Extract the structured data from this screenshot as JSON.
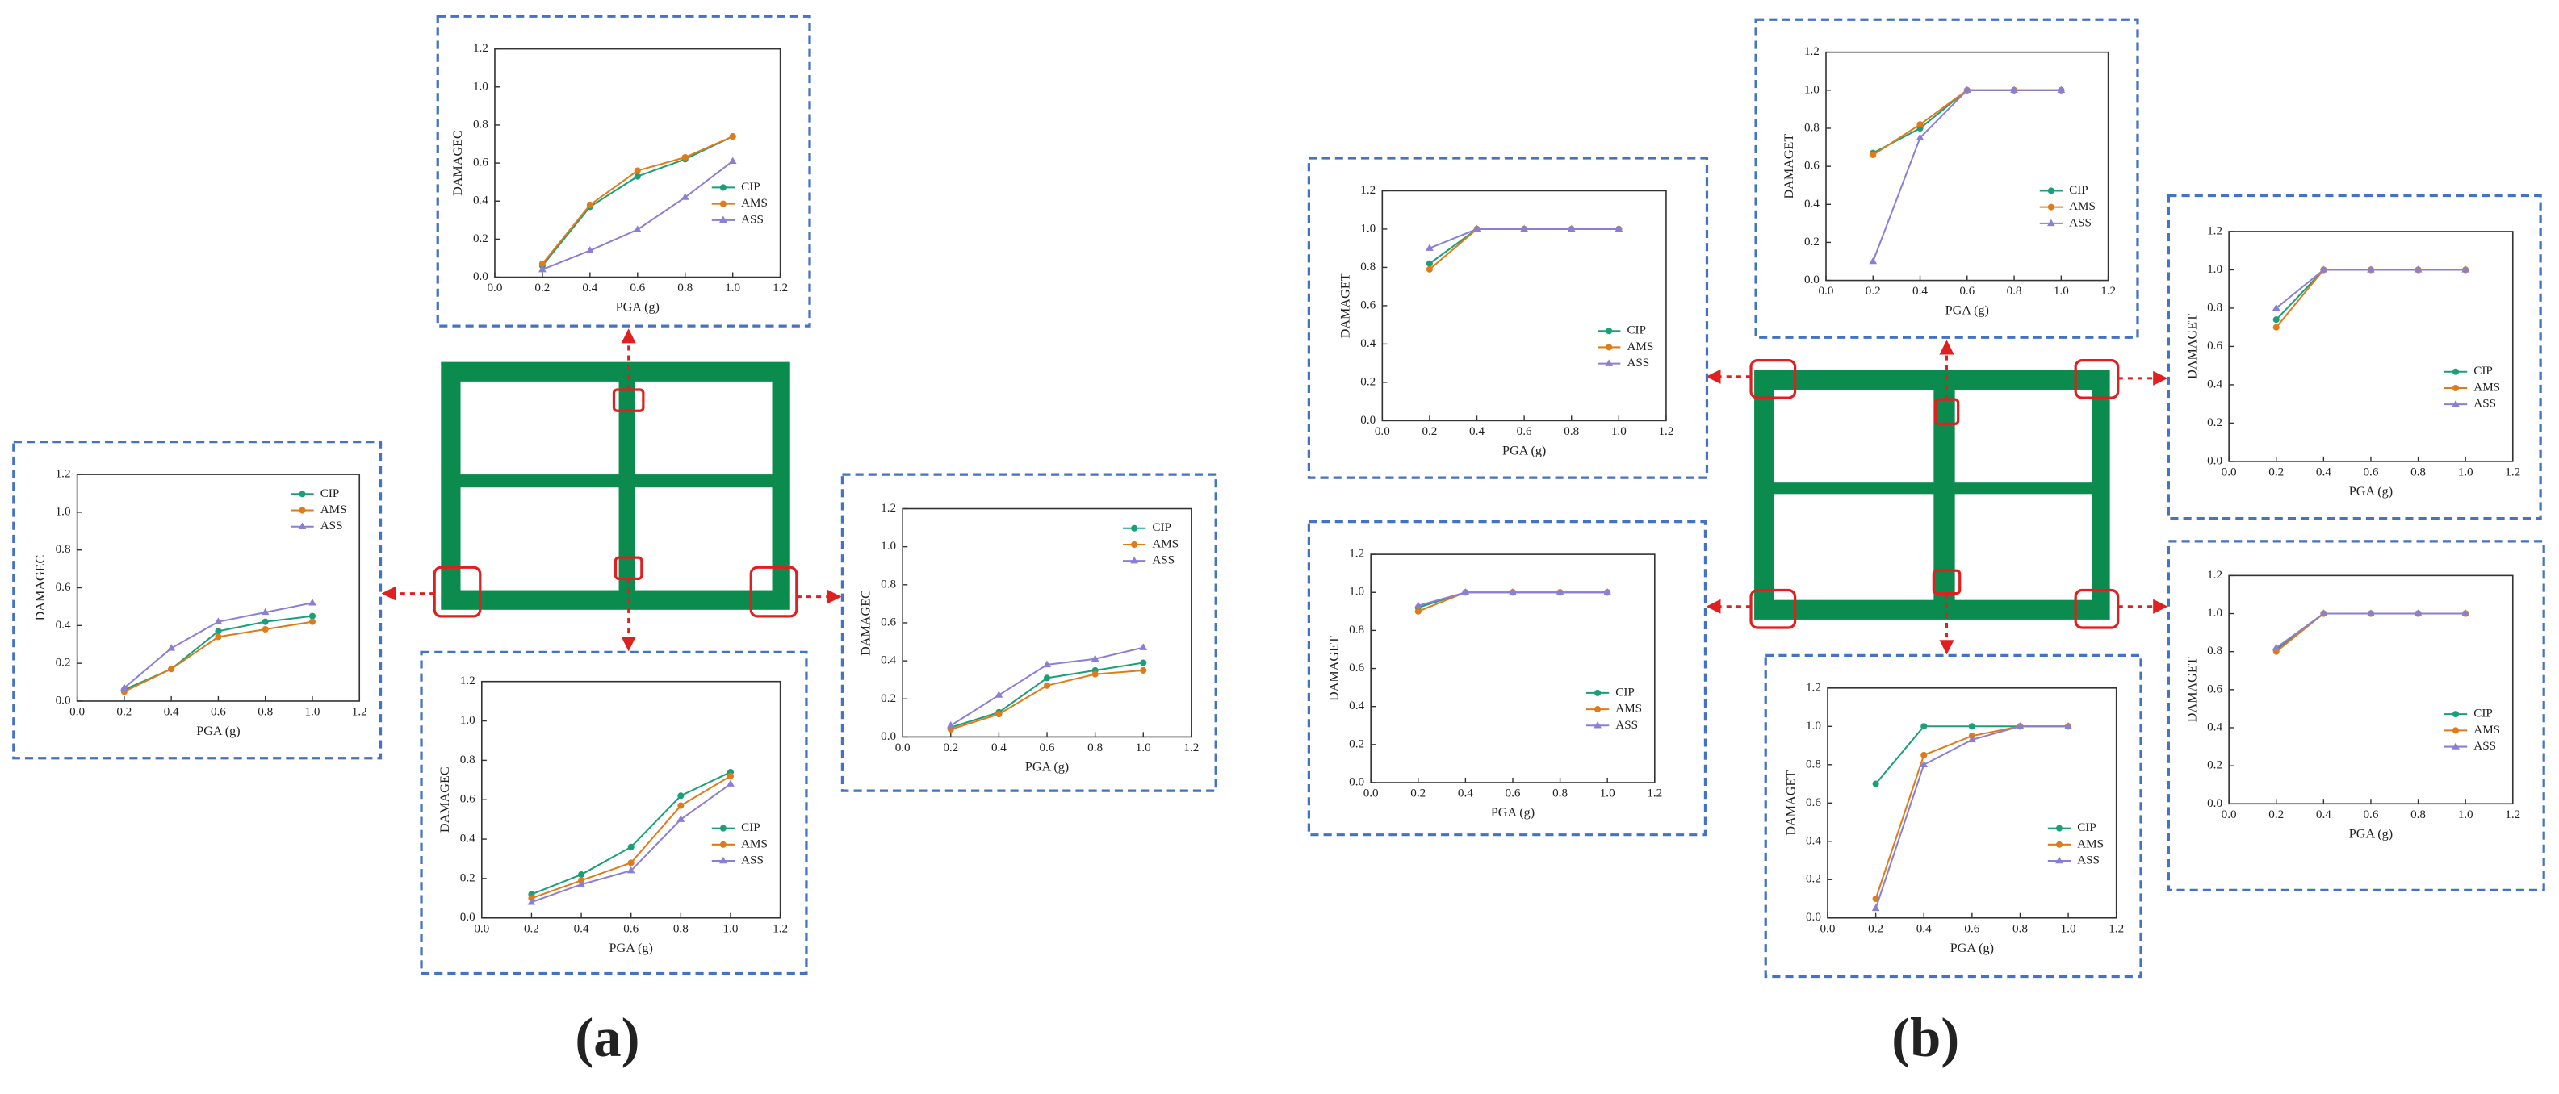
{
  "chart_data": [
    {
      "type": "line",
      "x": [
        0.2,
        0.4,
        0.6,
        0.8,
        1.0
      ],
      "xlabel": "PGA (g)",
      "ylabel": "DAMAGEC",
      "legend": "lower right",
      "xlim": [
        0,
        1.2
      ],
      "ylim": [
        0,
        1.2
      ],
      "xticks": [
        {
          "value": 0,
          "label": "0.0"
        },
        0.2,
        0.4,
        0.6,
        0.8,
        {
          "value": 1,
          "label": "1.0"
        },
        1.2
      ],
      "yticks": [
        {
          "value": 0,
          "label": "0.0"
        },
        0.2,
        0.4,
        0.6,
        0.8,
        {
          "value": 1,
          "label": "1.0"
        },
        1.2
      ],
      "series": [
        {
          "name": "CIP",
          "color": "#1a9f7a",
          "values": [
            0.06,
            0.37,
            0.53,
            0.62,
            0.74
          ]
        },
        {
          "name": "AMS",
          "color": "#e07b1a",
          "values": [
            0.07,
            0.38,
            0.56,
            0.63,
            0.74
          ]
        },
        {
          "name": "ASS",
          "color": "#8a7fd6",
          "values": [
            0.04,
            0.14,
            0.25,
            0.42,
            0.61
          ]
        }
      ]
    },
    {
      "type": "line",
      "x": [
        0.2,
        0.4,
        0.6,
        0.8,
        1.0
      ],
      "xlabel": "PGA (g)",
      "ylabel": "DAMAGEC",
      "legend": "upper right",
      "xlim": [
        0,
        1.2
      ],
      "ylim": [
        0,
        1.2
      ],
      "xticks": [
        {
          "value": 0,
          "label": "0.0"
        },
        0.2,
        0.4,
        0.6,
        0.8,
        {
          "value": 1,
          "label": "1.0"
        },
        1.2
      ],
      "yticks": [
        {
          "value": 0,
          "label": "0.0"
        },
        0.2,
        0.4,
        0.6,
        0.8,
        {
          "value": 1,
          "label": "1.0"
        },
        1.2
      ],
      "series": [
        {
          "name": "CIP",
          "color": "#1a9f7a",
          "values": [
            0.06,
            0.17,
            0.37,
            0.42,
            0.45
          ]
        },
        {
          "name": "AMS",
          "color": "#e07b1a",
          "values": [
            0.05,
            0.17,
            0.34,
            0.38,
            0.42
          ]
        },
        {
          "name": "ASS",
          "color": "#8a7fd6",
          "values": [
            0.07,
            0.28,
            0.42,
            0.47,
            0.52
          ]
        }
      ]
    },
    {
      "type": "line",
      "x": [
        0.2,
        0.4,
        0.6,
        0.8,
        1.0
      ],
      "xlabel": "PGA (g)",
      "ylabel": "DAMAGEC",
      "legend": "upper right",
      "xlim": [
        0,
        1.2
      ],
      "ylim": [
        0,
        1.2
      ],
      "xticks": [
        {
          "value": 0,
          "label": "0.0"
        },
        0.2,
        0.4,
        0.6,
        0.8,
        {
          "value": 1,
          "label": "1.0"
        },
        1.2
      ],
      "yticks": [
        {
          "value": 0,
          "label": "0.0"
        },
        0.2,
        0.4,
        0.6,
        0.8,
        {
          "value": 1,
          "label": "1.0"
        },
        1.2
      ],
      "series": [
        {
          "name": "CIP",
          "color": "#1a9f7a",
          "values": [
            0.05,
            0.13,
            0.31,
            0.35,
            0.39
          ]
        },
        {
          "name": "AMS",
          "color": "#e07b1a",
          "values": [
            0.04,
            0.12,
            0.27,
            0.33,
            0.35
          ]
        },
        {
          "name": "ASS",
          "color": "#8a7fd6",
          "values": [
            0.06,
            0.22,
            0.38,
            0.41,
            0.47
          ]
        }
      ]
    },
    {
      "type": "line",
      "x": [
        0.2,
        0.4,
        0.6,
        0.8,
        1.0
      ],
      "xlabel": "PGA (g)",
      "ylabel": "DAMAGEC",
      "legend": "lower right",
      "xlim": [
        0,
        1.2
      ],
      "ylim": [
        0,
        1.2
      ],
      "xticks": [
        {
          "value": 0,
          "label": "0.0"
        },
        0.2,
        0.4,
        0.6,
        0.8,
        {
          "value": 1,
          "label": "1.0"
        },
        1.2
      ],
      "yticks": [
        {
          "value": 0,
          "label": "0.0"
        },
        0.2,
        0.4,
        0.6,
        0.8,
        {
          "value": 1,
          "label": "1.0"
        },
        1.2
      ],
      "series": [
        {
          "name": "CIP",
          "color": "#1a9f7a",
          "values": [
            0.12,
            0.22,
            0.36,
            0.62,
            0.74
          ]
        },
        {
          "name": "AMS",
          "color": "#e07b1a",
          "values": [
            0.1,
            0.19,
            0.28,
            0.57,
            0.72
          ]
        },
        {
          "name": "ASS",
          "color": "#8a7fd6",
          "values": [
            0.08,
            0.17,
            0.24,
            0.5,
            0.68
          ]
        }
      ]
    },
    {
      "type": "line",
      "x": [
        0.2,
        0.4,
        0.6,
        0.8,
        1.0
      ],
      "xlabel": "PGA (g)",
      "ylabel": "DAMAGET",
      "legend": "lower right",
      "xlim": [
        0,
        1.2
      ],
      "ylim": [
        0,
        1.2
      ],
      "xticks": [
        {
          "value": 0,
          "label": "0.0"
        },
        0.2,
        0.4,
        0.6,
        0.8,
        {
          "value": 1,
          "label": "1.0"
        },
        1.2
      ],
      "yticks": [
        {
          "value": 0,
          "label": "0.0"
        },
        0.2,
        0.4,
        0.6,
        0.8,
        {
          "value": 1,
          "label": "1.0"
        },
        1.2
      ],
      "series": [
        {
          "name": "CIP",
          "color": "#1a9f7a",
          "values": [
            0.82,
            1.0,
            1.0,
            1.0,
            1.0
          ]
        },
        {
          "name": "AMS",
          "color": "#e07b1a",
          "values": [
            0.79,
            1.0,
            1.0,
            1.0,
            1.0
          ]
        },
        {
          "name": "ASS",
          "color": "#8a7fd6",
          "values": [
            0.9,
            1.0,
            1.0,
            1.0,
            1.0
          ]
        }
      ]
    },
    {
      "type": "line",
      "x": [
        0.2,
        0.4,
        0.6,
        0.8,
        1.0
      ],
      "xlabel": "PGA (g)",
      "ylabel": "DAMAGET",
      "legend": "lower right",
      "xlim": [
        0,
        1.2
      ],
      "ylim": [
        0,
        1.2
      ],
      "xticks": [
        {
          "value": 0,
          "label": "0.0"
        },
        0.2,
        0.4,
        0.6,
        0.8,
        {
          "value": 1,
          "label": "1.0"
        },
        1.2
      ],
      "yticks": [
        {
          "value": 0,
          "label": "0.0"
        },
        0.2,
        0.4,
        0.6,
        0.8,
        {
          "value": 1,
          "label": "1.0"
        },
        1.2
      ],
      "series": [
        {
          "name": "CIP",
          "color": "#1a9f7a",
          "values": [
            0.67,
            0.8,
            1.0,
            1.0,
            1.0
          ]
        },
        {
          "name": "AMS",
          "color": "#e07b1a",
          "values": [
            0.66,
            0.82,
            1.0,
            1.0,
            1.0
          ]
        },
        {
          "name": "ASS",
          "color": "#8a7fd6",
          "values": [
            0.1,
            0.75,
            1.0,
            1.0,
            1.0
          ]
        }
      ]
    },
    {
      "type": "line",
      "x": [
        0.2,
        0.4,
        0.6,
        0.8,
        1.0
      ],
      "xlabel": "PGA (g)",
      "ylabel": "DAMAGET",
      "legend": "lower right",
      "xlim": [
        0,
        1.2
      ],
      "ylim": [
        0,
        1.2
      ],
      "xticks": [
        {
          "value": 0,
          "label": "0.0"
        },
        0.2,
        0.4,
        0.6,
        0.8,
        {
          "value": 1,
          "label": "1.0"
        },
        1.2
      ],
      "yticks": [
        {
          "value": 0,
          "label": "0.0"
        },
        0.2,
        0.4,
        0.6,
        0.8,
        {
          "value": 1,
          "label": "1.0"
        },
        1.2
      ],
      "series": [
        {
          "name": "CIP",
          "color": "#1a9f7a",
          "values": [
            0.74,
            1.0,
            1.0,
            1.0,
            1.0
          ]
        },
        {
          "name": "AMS",
          "color": "#e07b1a",
          "values": [
            0.7,
            1.0,
            1.0,
            1.0,
            1.0
          ]
        },
        {
          "name": "ASS",
          "color": "#8a7fd6",
          "values": [
            0.8,
            1.0,
            1.0,
            1.0,
            1.0
          ]
        }
      ]
    },
    {
      "type": "line",
      "x": [
        0.2,
        0.4,
        0.6,
        0.8,
        1.0
      ],
      "xlabel": "PGA (g)",
      "ylabel": "DAMAGET",
      "legend": "lower right",
      "xlim": [
        0,
        1.2
      ],
      "ylim": [
        0,
        1.2
      ],
      "xticks": [
        {
          "value": 0,
          "label": "0.0"
        },
        0.2,
        0.4,
        0.6,
        0.8,
        {
          "value": 1,
          "label": "1.0"
        },
        1.2
      ],
      "yticks": [
        {
          "value": 0,
          "label": "0.0"
        },
        0.2,
        0.4,
        0.6,
        0.8,
        {
          "value": 1,
          "label": "1.0"
        },
        1.2
      ],
      "series": [
        {
          "name": "CIP",
          "color": "#1a9f7a",
          "values": [
            0.92,
            1.0,
            1.0,
            1.0,
            1.0
          ]
        },
        {
          "name": "AMS",
          "color": "#e07b1a",
          "values": [
            0.9,
            1.0,
            1.0,
            1.0,
            1.0
          ]
        },
        {
          "name": "ASS",
          "color": "#8a7fd6",
          "values": [
            0.93,
            1.0,
            1.0,
            1.0,
            1.0
          ]
        }
      ]
    },
    {
      "type": "line",
      "x": [
        0.2,
        0.4,
        0.6,
        0.8,
        1.0
      ],
      "xlabel": "PGA (g)",
      "ylabel": "DAMAGET",
      "legend": "lower right",
      "xlim": [
        0,
        1.2
      ],
      "ylim": [
        0,
        1.2
      ],
      "xticks": [
        {
          "value": 0,
          "label": "0.0"
        },
        0.2,
        0.4,
        0.6,
        0.8,
        {
          "value": 1,
          "label": "1.0"
        },
        1.2
      ],
      "yticks": [
        {
          "value": 0,
          "label": "0.0"
        },
        0.2,
        0.4,
        0.6,
        0.8,
        {
          "value": 1,
          "label": "1.0"
        },
        1.2
      ],
      "series": [
        {
          "name": "CIP",
          "color": "#1a9f7a",
          "values": [
            0.7,
            1.0,
            1.0,
            1.0,
            1.0
          ]
        },
        {
          "name": "AMS",
          "color": "#e07b1a",
          "values": [
            0.1,
            0.85,
            0.95,
            1.0,
            1.0
          ]
        },
        {
          "name": "ASS",
          "color": "#8a7fd6",
          "values": [
            0.05,
            0.8,
            0.93,
            1.0,
            1.0
          ]
        }
      ]
    },
    {
      "type": "line",
      "x": [
        0.2,
        0.4,
        0.6,
        0.8,
        1.0
      ],
      "xlabel": "PGA (g)",
      "ylabel": "DAMAGET",
      "legend": "lower right",
      "xlim": [
        0,
        1.2
      ],
      "ylim": [
        0,
        1.2
      ],
      "xticks": [
        {
          "value": 0,
          "label": "0.0"
        },
        0.2,
        0.4,
        0.6,
        0.8,
        {
          "value": 1,
          "label": "1.0"
        },
        1.2
      ],
      "yticks": [
        {
          "value": 0,
          "label": "0.0"
        },
        0.2,
        0.4,
        0.6,
        0.8,
        {
          "value": 1,
          "label": "1.0"
        },
        1.2
      ],
      "series": [
        {
          "name": "CIP",
          "color": "#1a9f7a",
          "values": [
            0.81,
            1.0,
            1.0,
            1.0,
            1.0
          ]
        },
        {
          "name": "AMS",
          "color": "#e07b1a",
          "values": [
            0.8,
            1.0,
            1.0,
            1.0,
            1.0
          ]
        },
        {
          "name": "ASS",
          "color": "#8a7fd6",
          "values": [
            0.82,
            1.0,
            1.0,
            1.0,
            1.0
          ]
        }
      ]
    }
  ],
  "panel_labels": [
    "(a)",
    "(b)"
  ]
}
